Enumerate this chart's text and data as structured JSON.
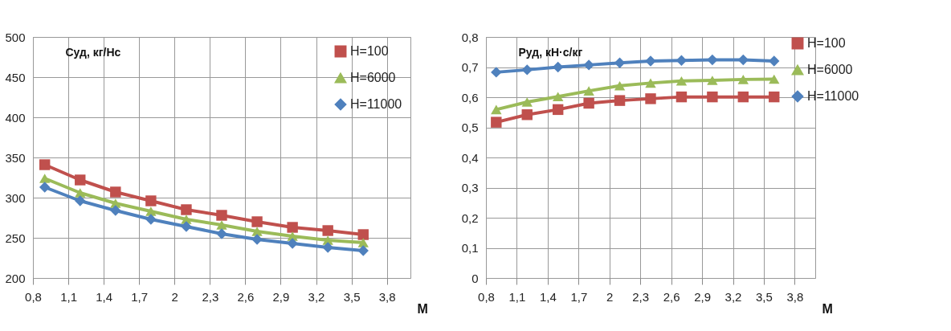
{
  "chart_data": [
    {
      "type": "line",
      "ylabel": "Суд, кг/Нс",
      "xlabel": "М",
      "xlim": [
        0.8,
        4.0
      ],
      "xticks": [
        {
          "value": 0.8,
          "label": "0,8"
        },
        {
          "value": 1.1,
          "label": "1,1"
        },
        {
          "value": 1.4,
          "label": "1,4"
        },
        {
          "value": 1.7,
          "label": "1,7"
        },
        2,
        {
          "value": 2.3,
          "label": "2,3"
        },
        {
          "value": 2.6,
          "label": "2,6"
        },
        {
          "value": 2.9,
          "label": "2,9"
        },
        {
          "value": 3.2,
          "label": "3,2"
        },
        {
          "value": 3.5,
          "label": "3,5"
        },
        {
          "value": 3.8,
          "label": "3,8"
        }
      ],
      "ylim": [
        200,
        500
      ],
      "yticks": [
        200,
        250,
        300,
        350,
        400,
        450,
        500
      ],
      "grid": true,
      "legend": "top right",
      "x": [
        0.9,
        1.2,
        1.5,
        1.8,
        2.1,
        2.4,
        2.7,
        3.0,
        3.3,
        3.6
      ],
      "series": [
        {
          "name": "H=100",
          "color": "#c0504d",
          "marker": "square",
          "values": [
            341,
            322,
            307,
            296,
            285,
            278,
            270,
            263,
            259,
            254
          ]
        },
        {
          "name": "H=6000",
          "color": "#9bbb59",
          "marker": "triangle",
          "values": [
            324,
            306,
            293,
            283,
            273,
            266,
            258,
            252,
            247,
            244
          ]
        },
        {
          "name": "H=11000",
          "color": "#4f81bd",
          "marker": "diamond",
          "values": [
            313,
            296,
            284,
            273,
            264,
            255,
            248,
            243,
            238,
            234
          ]
        }
      ]
    },
    {
      "type": "line",
      "ylabel": "Руд, кН·с/кг",
      "xlabel": "М",
      "xlim": [
        0.8,
        4.0
      ],
      "xticks": [
        {
          "value": 0.8,
          "label": "0,8"
        },
        {
          "value": 1.1,
          "label": "1,1"
        },
        {
          "value": 1.4,
          "label": "1,4"
        },
        {
          "value": 1.7,
          "label": "1,7"
        },
        2,
        {
          "value": 2.3,
          "label": "2,3"
        },
        {
          "value": 2.6,
          "label": "2,6"
        },
        {
          "value": 2.9,
          "label": "2,9"
        },
        {
          "value": 3.2,
          "label": "3,2"
        },
        {
          "value": 3.5,
          "label": "3,5"
        },
        {
          "value": 3.8,
          "label": "3,8"
        }
      ],
      "ylim": [
        0,
        0.8
      ],
      "yticks": [
        0,
        {
          "value": 0.1,
          "label": "0,1"
        },
        {
          "value": 0.2,
          "label": "0,2"
        },
        {
          "value": 0.3,
          "label": "0,3"
        },
        {
          "value": 0.4,
          "label": "0,4"
        },
        {
          "value": 0.5,
          "label": "0,5"
        },
        {
          "value": 0.6,
          "label": "0,6"
        },
        {
          "value": 0.7,
          "label": "0,7"
        },
        {
          "value": 0.8,
          "label": "0,8"
        }
      ],
      "grid": true,
      "legend": "right",
      "x": [
        0.9,
        1.2,
        1.5,
        1.8,
        2.1,
        2.4,
        2.7,
        3.0,
        3.3,
        3.6
      ],
      "series": [
        {
          "name": "H=100",
          "color": "#c0504d",
          "marker": "square",
          "values": [
            0.517,
            0.542,
            0.559,
            0.58,
            0.589,
            0.595,
            0.601,
            0.601,
            0.601,
            0.601
          ]
        },
        {
          "name": "H=6000",
          "color": "#9bbb59",
          "marker": "triangle",
          "values": [
            0.559,
            0.584,
            0.602,
            0.621,
            0.638,
            0.647,
            0.654,
            0.656,
            0.659,
            0.66
          ]
        },
        {
          "name": "H=11000",
          "color": "#4f81bd",
          "marker": "diamond",
          "values": [
            0.683,
            0.691,
            0.7,
            0.707,
            0.714,
            0.72,
            0.722,
            0.724,
            0.724,
            0.72
          ]
        }
      ]
    }
  ]
}
